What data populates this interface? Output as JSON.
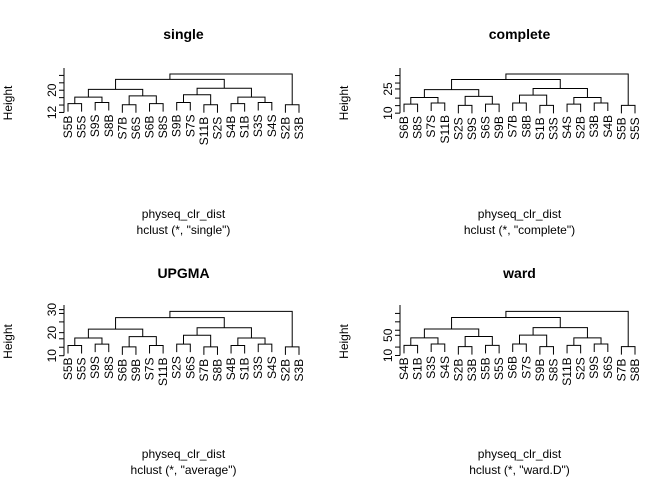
{
  "chart_data": [
    {
      "type": "dendrogram",
      "title": "single",
      "xlabel": "physeq_clr_dist",
      "sublabel": "hclust (*, \"single\")",
      "ylabel": "Height",
      "yticks": [
        12,
        20
      ],
      "ylim": [
        10,
        28
      ],
      "leaves": [
        "S5B",
        "S5S",
        "S9S",
        "S8B",
        "S7B",
        "S6S",
        "S6B",
        "S8S",
        "S9B",
        "S7S",
        "S11B",
        "S2S",
        "S4B",
        "S1B",
        "S3S",
        "S4S",
        "S2B",
        "S3B"
      ],
      "merges": [
        [
          -1,
          -2,
          19.4
        ],
        [
          -3,
          -4,
          19.1
        ],
        [
          -5,
          -6,
          17.9
        ],
        [
          -7,
          -8,
          17.0
        ],
        [
          -9,
          -10,
          16.2
        ],
        [
          -11,
          -12,
          14.8
        ],
        [
          10,
          -13,
          16.8
        ],
        [
          9,
          -14,
          17.0
        ],
        [
          8,
          -15,
          18.5
        ],
        [
          7,
          -16,
          19.3
        ],
        [
          6,
          -17,
          20.0
        ],
        [
          5,
          -18,
          20.6
        ],
        [
          -19,
          -20,
          20.5
        ],
        [
          -21,
          -22,
          19.0
        ],
        [
          -23,
          -24,
          19.5
        ],
        [
          18,
          -25,
          20.5
        ],
        [
          17,
          -26,
          21.0
        ],
        [
          12,
          -27,
          21.3
        ],
        [
          16,
          -28,
          22.0
        ]
      ]
    },
    {
      "type": "dendrogram",
      "title": "complete",
      "xlabel": "physeq_clr_dist",
      "sublabel": "hclust (*, \"complete\")",
      "ylabel": "Height",
      "yticks": [
        10,
        25
      ],
      "ylim": [
        7,
        38
      ],
      "leaves": [
        "S6B",
        "S8S",
        "S7S",
        "S11B",
        "S2S",
        "S9S",
        "S6S",
        "S9B",
        "S7B",
        "S8B",
        "S1B",
        "S3S",
        "S4S",
        "S2B",
        "S3B",
        "S4B",
        "S5B",
        "S5S"
      ],
      "merges": [
        [
          -1,
          -2,
          15.5
        ],
        [
          -3,
          -4,
          14.5
        ],
        [
          -5,
          -6,
          13.0
        ],
        [
          -7,
          -8,
          11.8
        ],
        [
          -9,
          -10,
          19.0
        ],
        [
          -11,
          -12,
          17.0
        ],
        [
          -13,
          -14,
          17.0
        ],
        [
          -15,
          -16,
          22.0
        ],
        [
          -17,
          -18,
          18.0
        ],
        [
          -19,
          -20,
          17.5
        ],
        [
          -21,
          -22,
          17.0
        ],
        [
          -23,
          -24,
          19.0
        ],
        [
          -25,
          -26,
          22.0
        ],
        [
          -27,
          -28,
          30.0
        ],
        [
          -29,
          -30,
          23.0
        ],
        [
          -31,
          -32,
          22.5
        ],
        [
          -33,
          -34,
          30.5
        ],
        [
          -35,
          -36,
          35.0
        ]
      ]
    },
    {
      "type": "dendrogram",
      "title": "UPGMA",
      "xlabel": "physeq_clr_dist",
      "sublabel": "hclust (*, \"average\")",
      "ylabel": "Height",
      "yticks": [
        10,
        20,
        30
      ],
      "ylim": [
        9,
        32
      ],
      "leaves": [
        "S5B",
        "S5S",
        "S9S",
        "S8S",
        "S6B",
        "S9B",
        "S7S",
        "S11B",
        "S2S",
        "S6S",
        "S7B",
        "S8B",
        "S4B",
        "S1B",
        "S3S",
        "S4S",
        "S2B",
        "S3B"
      ]
    },
    {
      "type": "dendrogram",
      "title": "ward",
      "xlabel": "physeq_clr_dist",
      "sublabel": "hclust (*, \"ward.D\")",
      "ylabel": "Height",
      "yticks": [
        10,
        50
      ],
      "ylim": [
        5,
        110
      ],
      "leaves": [
        "S4B",
        "S1B",
        "S3S",
        "S4S",
        "S2B",
        "S3B",
        "S5B",
        "S5S",
        "S6B",
        "S7S",
        "S9B",
        "S8S",
        "S11B",
        "S2S",
        "S9S",
        "S6S",
        "S7B",
        "S8B"
      ]
    }
  ]
}
